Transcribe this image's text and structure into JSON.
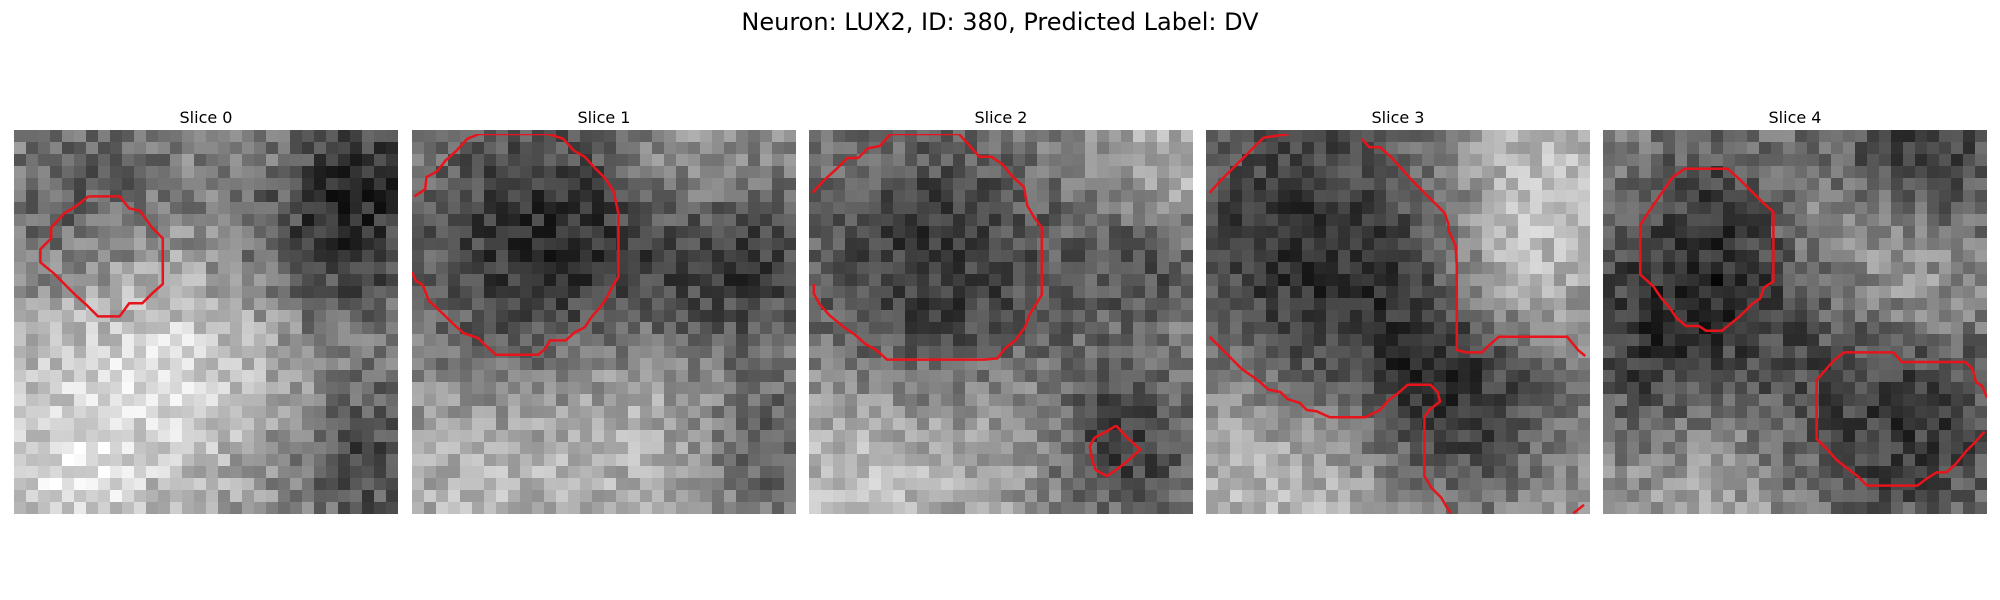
{
  "figure": {
    "title": "Neuron: LUX2, ID: 380, Predicted Label: DV",
    "contour_color": "#e8141b"
  },
  "panels": [
    {
      "title": "Slice 0",
      "image": {
        "grid": 32,
        "seed": 11,
        "base": 150,
        "noise": 38,
        "blobs": [
          {
            "cx": 2,
            "cy": 6,
            "r": 5,
            "amp": -45
          },
          {
            "cx": 9,
            "cy": 3,
            "r": 4,
            "amp": -40
          },
          {
            "cx": 26,
            "cy": 9,
            "r": 6,
            "amp": -95
          },
          {
            "cx": 30,
            "cy": 2,
            "r": 4,
            "amp": -60
          },
          {
            "cx": 29,
            "cy": 27,
            "r": 5,
            "amp": -80
          },
          {
            "cx": 8,
            "cy": 22,
            "r": 7,
            "amp": 55
          },
          {
            "cx": 18,
            "cy": 18,
            "r": 6,
            "amp": 40
          },
          {
            "cx": 4,
            "cy": 29,
            "r": 4,
            "amp": 50
          }
        ]
      },
      "contours": [
        [
          [
            6.2,
            5.2
          ],
          [
            8.8,
            5.2
          ],
          [
            9.6,
            6.2
          ],
          [
            10.5,
            6.4
          ],
          [
            11.5,
            7.8
          ],
          [
            12.4,
            8.7
          ],
          [
            12.4,
            12.5
          ],
          [
            11.5,
            13.3
          ],
          [
            10.7,
            14.1
          ],
          [
            9.6,
            14.1
          ],
          [
            8.8,
            15.2
          ],
          [
            7.0,
            15.2
          ],
          [
            6.1,
            14.3
          ],
          [
            5.2,
            13.5
          ],
          [
            4.2,
            12.5
          ],
          [
            3.3,
            11.6
          ],
          [
            2.2,
            10.7
          ],
          [
            2.2,
            9.6
          ],
          [
            3.1,
            8.7
          ],
          [
            3.1,
            7.8
          ],
          [
            4.2,
            6.6
          ],
          [
            5.2,
            6.0
          ],
          [
            6.2,
            5.2
          ]
        ]
      ]
    },
    {
      "title": "Slice 1",
      "image": {
        "grid": 32,
        "seed": 23,
        "base": 165,
        "noise": 34,
        "blobs": [
          {
            "cx": 11,
            "cy": 9,
            "r": 10,
            "amp": -120
          },
          {
            "cx": 28,
            "cy": 11,
            "r": 6,
            "amp": -80
          },
          {
            "cx": 30,
            "cy": 27,
            "r": 5,
            "amp": -70
          },
          {
            "cx": 22,
            "cy": 3,
            "r": 4,
            "amp": 45
          },
          {
            "cx": 18,
            "cy": 22,
            "r": 6,
            "amp": 45
          },
          {
            "cx": 6,
            "cy": 27,
            "r": 5,
            "amp": 30
          }
        ]
      },
      "contours": [
        [
          [
            0.2,
            5.2
          ],
          [
            1.1,
            4.6
          ],
          [
            1.2,
            3.6
          ],
          [
            2.1,
            3.1
          ],
          [
            2.8,
            2.2
          ],
          [
            3.7,
            1.4
          ],
          [
            4.6,
            0.4
          ],
          [
            5.6,
            0.0
          ],
          [
            6.7,
            0.0
          ],
          [
            7.2,
            0.0
          ],
          [
            11.4,
            0.0
          ],
          [
            12.6,
            0.4
          ],
          [
            13.5,
            1.4
          ],
          [
            14.4,
            1.9
          ],
          [
            15.2,
            2.8
          ],
          [
            16.1,
            3.7
          ],
          [
            16.8,
            4.8
          ],
          [
            17.2,
            6.6
          ],
          [
            17.2,
            11.9
          ],
          [
            16.7,
            12.7
          ],
          [
            16.2,
            13.7
          ],
          [
            15.7,
            14.4
          ],
          [
            15.0,
            15.2
          ],
          [
            14.4,
            16.1
          ],
          [
            13.6,
            16.5
          ],
          [
            12.8,
            17.2
          ],
          [
            11.5,
            17.2
          ],
          [
            11.1,
            17.9
          ],
          [
            10.5,
            18.4
          ],
          [
            7.0,
            18.4
          ],
          [
            6.0,
            17.5
          ],
          [
            5.5,
            17.0
          ],
          [
            4.3,
            16.6
          ],
          [
            3.4,
            15.8
          ],
          [
            2.6,
            15.0
          ],
          [
            1.4,
            13.9
          ],
          [
            0.9,
            12.6
          ],
          [
            0.3,
            12.2
          ],
          [
            0.0,
            11.5
          ]
        ]
      ]
    },
    {
      "title": "Slice 2",
      "image": {
        "grid": 32,
        "seed": 37,
        "base": 160,
        "noise": 34,
        "blobs": [
          {
            "cx": 10,
            "cy": 11,
            "r": 10,
            "amp": -105
          },
          {
            "cx": 28,
            "cy": 10,
            "r": 4,
            "amp": -70
          },
          {
            "cx": 26,
            "cy": 26,
            "r": 5,
            "amp": -95
          },
          {
            "cx": 29,
            "cy": 4,
            "r": 4,
            "amp": 40
          },
          {
            "cx": 5,
            "cy": 27,
            "r": 6,
            "amp": 50
          },
          {
            "cx": 17,
            "cy": 24,
            "r": 4,
            "amp": 35
          }
        ]
      },
      "contours": [
        [
          [
            0.3,
            4.9
          ],
          [
            1.2,
            3.9
          ],
          [
            2.3,
            2.9
          ],
          [
            3.2,
            2.0
          ],
          [
            4.1,
            2.0
          ],
          [
            4.9,
            1.2
          ],
          [
            5.9,
            1.0
          ],
          [
            6.8,
            0.0
          ],
          [
            12.5,
            0.0
          ],
          [
            13.4,
            1.0
          ],
          [
            14.2,
            1.9
          ],
          [
            15.2,
            1.9
          ],
          [
            16.1,
            2.5
          ],
          [
            17.0,
            3.6
          ],
          [
            17.9,
            4.4
          ],
          [
            18.2,
            6.0
          ],
          [
            18.8,
            7.0
          ],
          [
            19.4,
            7.8
          ],
          [
            19.4,
            13.4
          ],
          [
            18.9,
            14.2
          ],
          [
            18.4,
            15.0
          ],
          [
            18.0,
            16.1
          ],
          [
            17.2,
            17.2
          ],
          [
            16.3,
            17.9
          ],
          [
            15.7,
            18.7
          ],
          [
            14.6,
            18.8
          ],
          [
            6.5,
            18.8
          ],
          [
            5.6,
            18.0
          ],
          [
            4.7,
            17.5
          ],
          [
            3.8,
            16.7
          ],
          [
            2.9,
            16.1
          ],
          [
            1.7,
            15.1
          ],
          [
            0.9,
            14.2
          ],
          [
            0.4,
            13.3
          ],
          [
            0.4,
            12.5
          ]
        ],
        [
          [
            25.6,
            24.3
          ],
          [
            26.5,
            25.3
          ],
          [
            27.6,
            26.3
          ],
          [
            26.5,
            27.3
          ],
          [
            25.3,
            28.2
          ],
          [
            24.8,
            28.5
          ],
          [
            23.9,
            28.0
          ],
          [
            23.6,
            27.2
          ],
          [
            23.4,
            26.0
          ],
          [
            23.8,
            25.3
          ],
          [
            24.6,
            24.9
          ],
          [
            25.6,
            24.3
          ]
        ]
      ]
    },
    {
      "title": "Slice 3",
      "image": {
        "grid": 32,
        "seed": 49,
        "base": 165,
        "noise": 32,
        "blobs": [
          {
            "cx": 8,
            "cy": 9,
            "r": 11,
            "amp": -115
          },
          {
            "cx": 21,
            "cy": 22,
            "r": 7,
            "amp": -90
          },
          {
            "cx": 26,
            "cy": 3,
            "r": 5,
            "amp": 45
          },
          {
            "cx": 25,
            "cy": 12,
            "r": 4,
            "amp": 60
          },
          {
            "cx": 4,
            "cy": 27,
            "r": 6,
            "amp": 35
          },
          {
            "cx": 12,
            "cy": 28,
            "r": 4,
            "amp": 25
          }
        ]
      },
      "contours": [
        [
          [
            0.3,
            4.9
          ],
          [
            1.2,
            3.9
          ],
          [
            2.1,
            3.0
          ],
          [
            3.0,
            2.1
          ],
          [
            3.9,
            1.2
          ],
          [
            4.8,
            0.3
          ],
          [
            6.9,
            0.0
          ]
        ],
        [
          [
            13.0,
            0.4
          ],
          [
            13.6,
            1.1
          ],
          [
            14.5,
            1.1
          ],
          [
            15.4,
            1.9
          ],
          [
            16.3,
            2.9
          ],
          [
            17.2,
            3.9
          ],
          [
            18.1,
            4.8
          ],
          [
            19.0,
            5.7
          ],
          [
            19.9,
            6.6
          ],
          [
            20.2,
            7.5
          ],
          [
            20.2,
            8.0
          ],
          [
            20.8,
            9.3
          ],
          [
            20.9,
            11.0
          ],
          [
            20.9,
            18.0
          ],
          [
            21.7,
            18.2
          ],
          [
            23.0,
            18.2
          ],
          [
            23.6,
            17.6
          ],
          [
            24.4,
            16.9
          ],
          [
            30.1,
            16.9
          ],
          [
            31.0,
            18.0
          ],
          [
            31.6,
            18.5
          ]
        ],
        [
          [
            0.3,
            16.9
          ],
          [
            1.2,
            17.8
          ],
          [
            2.1,
            18.7
          ],
          [
            3.0,
            19.6
          ],
          [
            4.3,
            20.5
          ],
          [
            5.2,
            21.3
          ],
          [
            6.2,
            21.5
          ],
          [
            6.8,
            22.1
          ],
          [
            7.8,
            22.4
          ],
          [
            8.4,
            23.0
          ],
          [
            9.2,
            23.1
          ],
          [
            10.3,
            23.6
          ],
          [
            13.3,
            23.6
          ],
          [
            14.5,
            23.0
          ],
          [
            15.2,
            22.2
          ],
          [
            16.0,
            21.6
          ],
          [
            16.8,
            20.9
          ],
          [
            18.7,
            20.9
          ],
          [
            19.3,
            21.5
          ],
          [
            19.5,
            22.3
          ],
          [
            18.6,
            23.0
          ],
          [
            18.2,
            23.6
          ],
          [
            18.2,
            28.5
          ],
          [
            18.8,
            29.5
          ],
          [
            19.6,
            30.3
          ],
          [
            20.0,
            31.0
          ],
          [
            20.4,
            31.6
          ]
        ],
        [
          [
            31.5,
            30.9
          ],
          [
            31.0,
            31.3
          ],
          [
            30.6,
            31.6
          ]
        ]
      ]
    },
    {
      "title": "Slice 4",
      "image": {
        "grid": 32,
        "seed": 61,
        "base": 150,
        "noise": 36,
        "blobs": [
          {
            "cx": 9,
            "cy": 8,
            "r": 7,
            "amp": -85
          },
          {
            "cx": 26,
            "cy": 2,
            "r": 6,
            "amp": -100
          },
          {
            "cx": 24,
            "cy": 23,
            "r": 9,
            "amp": -95
          },
          {
            "cx": 3,
            "cy": 18,
            "r": 6,
            "amp": -70
          },
          {
            "cx": 25,
            "cy": 11,
            "r": 5,
            "amp": 70
          },
          {
            "cx": 10,
            "cy": 29,
            "r": 5,
            "amp": 35
          },
          {
            "cx": 18,
            "cy": 6,
            "r": 4,
            "amp": 45
          }
        ]
      },
      "contours": [
        [
          [
            5.8,
            3.6
          ],
          [
            6.8,
            2.9
          ],
          [
            10.4,
            2.9
          ],
          [
            11.4,
            3.8
          ],
          [
            12.3,
            4.7
          ],
          [
            13.2,
            5.6
          ],
          [
            14.2,
            6.5
          ],
          [
            14.2,
            12.3
          ],
          [
            13.4,
            12.8
          ],
          [
            13.1,
            13.7
          ],
          [
            12.4,
            14.2
          ],
          [
            11.4,
            15.2
          ],
          [
            10.4,
            16.0
          ],
          [
            9.9,
            16.4
          ],
          [
            8.6,
            16.4
          ],
          [
            8.0,
            16.0
          ],
          [
            6.9,
            16.0
          ],
          [
            6.1,
            15.3
          ],
          [
            5.5,
            14.4
          ],
          [
            4.8,
            13.6
          ],
          [
            4.2,
            12.7
          ],
          [
            3.1,
            11.7
          ],
          [
            3.1,
            7.6
          ],
          [
            3.8,
            6.5
          ],
          [
            4.7,
            5.2
          ],
          [
            5.8,
            3.6
          ]
        ],
        [
          [
            17.8,
            20.5
          ],
          [
            18.6,
            19.6
          ],
          [
            19.3,
            18.8
          ],
          [
            20.1,
            18.2
          ],
          [
            24.2,
            18.2
          ],
          [
            24.9,
            19.0
          ],
          [
            30.2,
            19.0
          ],
          [
            30.8,
            19.6
          ],
          [
            31.1,
            20.7
          ],
          [
            31.6,
            21.0
          ],
          [
            32.0,
            22.0
          ]
        ],
        [
          [
            31.8,
            24.8
          ],
          [
            31.0,
            25.7
          ],
          [
            30.2,
            26.5
          ],
          [
            29.4,
            27.5
          ],
          [
            28.6,
            28.2
          ],
          [
            27.8,
            28.2
          ],
          [
            27.0,
            28.7
          ],
          [
            26.2,
            29.3
          ],
          [
            22.0,
            29.3
          ],
          [
            21.2,
            28.5
          ],
          [
            20.4,
            27.9
          ],
          [
            19.5,
            27.2
          ],
          [
            18.7,
            26.3
          ],
          [
            17.8,
            25.4
          ],
          [
            17.8,
            20.5
          ]
        ]
      ]
    }
  ]
}
